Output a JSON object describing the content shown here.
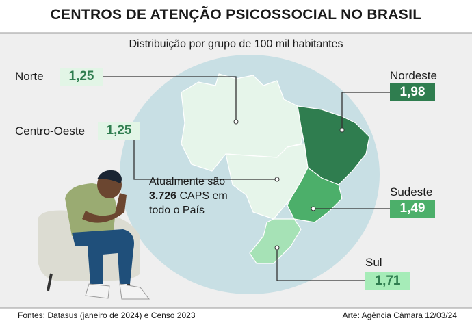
{
  "header": {
    "title": "CENTROS DE ATENÇÃO PSICOSSOCIAL NO BRASIL",
    "subtitle": "Distribuição por grupo de 100 mil habitantes"
  },
  "regions": [
    {
      "name": "Norte",
      "value": "1,25"
    },
    {
      "name": "Centro-Oeste",
      "value": "1,25"
    },
    {
      "name": "Nordeste",
      "value": "1,98"
    },
    {
      "name": "Sudeste",
      "value": "1,49"
    },
    {
      "name": "Sul",
      "value": "1,71"
    }
  ],
  "note": {
    "before": "Atualmente são",
    "bold": "3.726",
    "after": "CAPS em todo o País"
  },
  "footer": {
    "source": "Fontes: Datasus (janeiro de 2024) e Censo 2023",
    "credit": "Arte: Agência Câmara 12/03/24"
  }
}
